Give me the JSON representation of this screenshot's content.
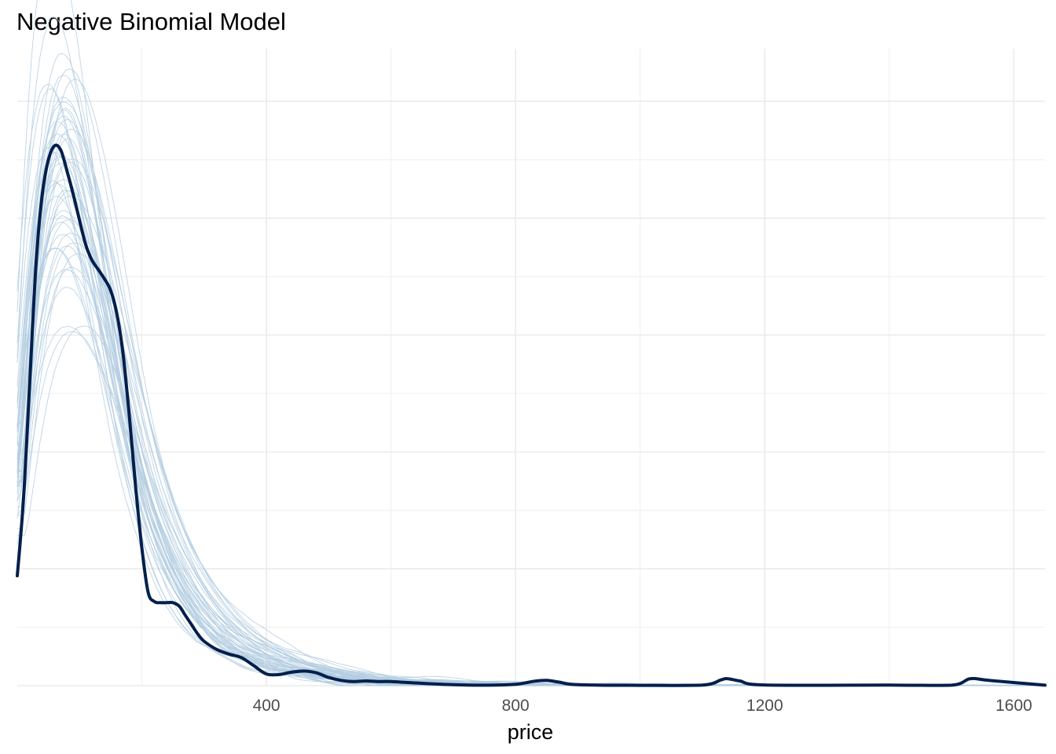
{
  "chart_data": {
    "type": "line",
    "title": "Negative Binomial Model",
    "xlabel": "price",
    "ylabel": "",
    "xlim": [
      0,
      1650
    ],
    "ylim": [
      0,
      0.00545
    ],
    "x_major_ticks": [
      400,
      800,
      1200,
      1600
    ],
    "x_minor_ticks": [
      200,
      600,
      1000,
      1400
    ],
    "y_gridlines": [
      0,
      0.0005,
      0.001,
      0.0015,
      0.002,
      0.0025,
      0.003,
      0.0035,
      0.004,
      0.0045,
      0.005
    ],
    "show_y_tick_labels": false,
    "grid": true,
    "legend": "none",
    "colors": {
      "observed": "#011f4b",
      "replicates": "#b3cde0",
      "grid": "#ebebeb"
    },
    "observed": {
      "x": [
        0,
        10,
        20,
        30,
        40,
        50,
        60,
        70,
        80,
        90,
        100,
        110,
        120,
        130,
        140,
        150,
        160,
        170,
        180,
        190,
        200,
        210,
        220,
        230,
        240,
        250,
        260,
        270,
        280,
        290,
        300,
        320,
        340,
        360,
        380,
        400,
        420,
        440,
        460,
        480,
        500,
        520,
        540,
        560,
        580,
        600,
        650,
        700,
        750,
        800,
        830,
        850,
        870,
        900,
        1000,
        1100,
        1130,
        1140,
        1160,
        1200,
        1400,
        1500,
        1530,
        1560,
        1650
      ],
      "y": [
        0.00094,
        0.0016,
        0.0026,
        0.0036,
        0.0042,
        0.0045,
        0.00462,
        0.00458,
        0.0044,
        0.0042,
        0.00398,
        0.00377,
        0.00364,
        0.00356,
        0.00348,
        0.00338,
        0.00318,
        0.00283,
        0.0023,
        0.0017,
        0.00118,
        0.0008,
        0.00072,
        0.00071,
        0.00071,
        0.00071,
        0.00068,
        0.0006,
        0.00052,
        0.00044,
        0.00038,
        0.00031,
        0.00027,
        0.00024,
        0.00017,
        0.0001,
        9.5e-05,
        0.000115,
        0.000125,
        0.00011,
        7e-05,
        4.5e-05,
        3.5e-05,
        4e-05,
        3.5e-05,
        3.5e-05,
        2e-05,
        8e-06,
        4e-06,
        1.2e-05,
        3.8e-05,
        4.5e-05,
        3e-05,
        8e-06,
        3e-06,
        5e-06,
        5e-05,
        6e-05,
        4e-05,
        6e-06,
        5e-06,
        4e-06,
        6e-05,
        4.5e-05,
        4e-06
      ]
    },
    "replicates": {
      "count": 50,
      "template_x": [
        0,
        10,
        20,
        30,
        40,
        50,
        60,
        70,
        80,
        90,
        100,
        110,
        120,
        130,
        140,
        150,
        160,
        170,
        180,
        190,
        200,
        220,
        240,
        260,
        280,
        300,
        330,
        360,
        400,
        450,
        500,
        550,
        600,
        650,
        700,
        800,
        900,
        1000,
        1200,
        1400,
        1650
      ],
      "template_y": [
        0.0017,
        0.0023,
        0.0029,
        0.0034,
        0.00378,
        0.00402,
        0.00418,
        0.00425,
        0.00425,
        0.0042,
        0.00409,
        0.00393,
        0.00375,
        0.00354,
        0.00331,
        0.00307,
        0.00282,
        0.00257,
        0.00233,
        0.0021,
        0.00188,
        0.00152,
        0.00123,
        0.001,
        0.00081,
        0.00066,
        0.00048,
        0.00035,
        0.00024,
        0.00015,
        0.0001,
        6e-05,
        3.8e-05,
        2.4e-05,
        1.5e-05,
        7e-06,
        3e-06,
        1.5e-06,
        6e-07,
        3e-07,
        1e-07
      ]
    }
  }
}
